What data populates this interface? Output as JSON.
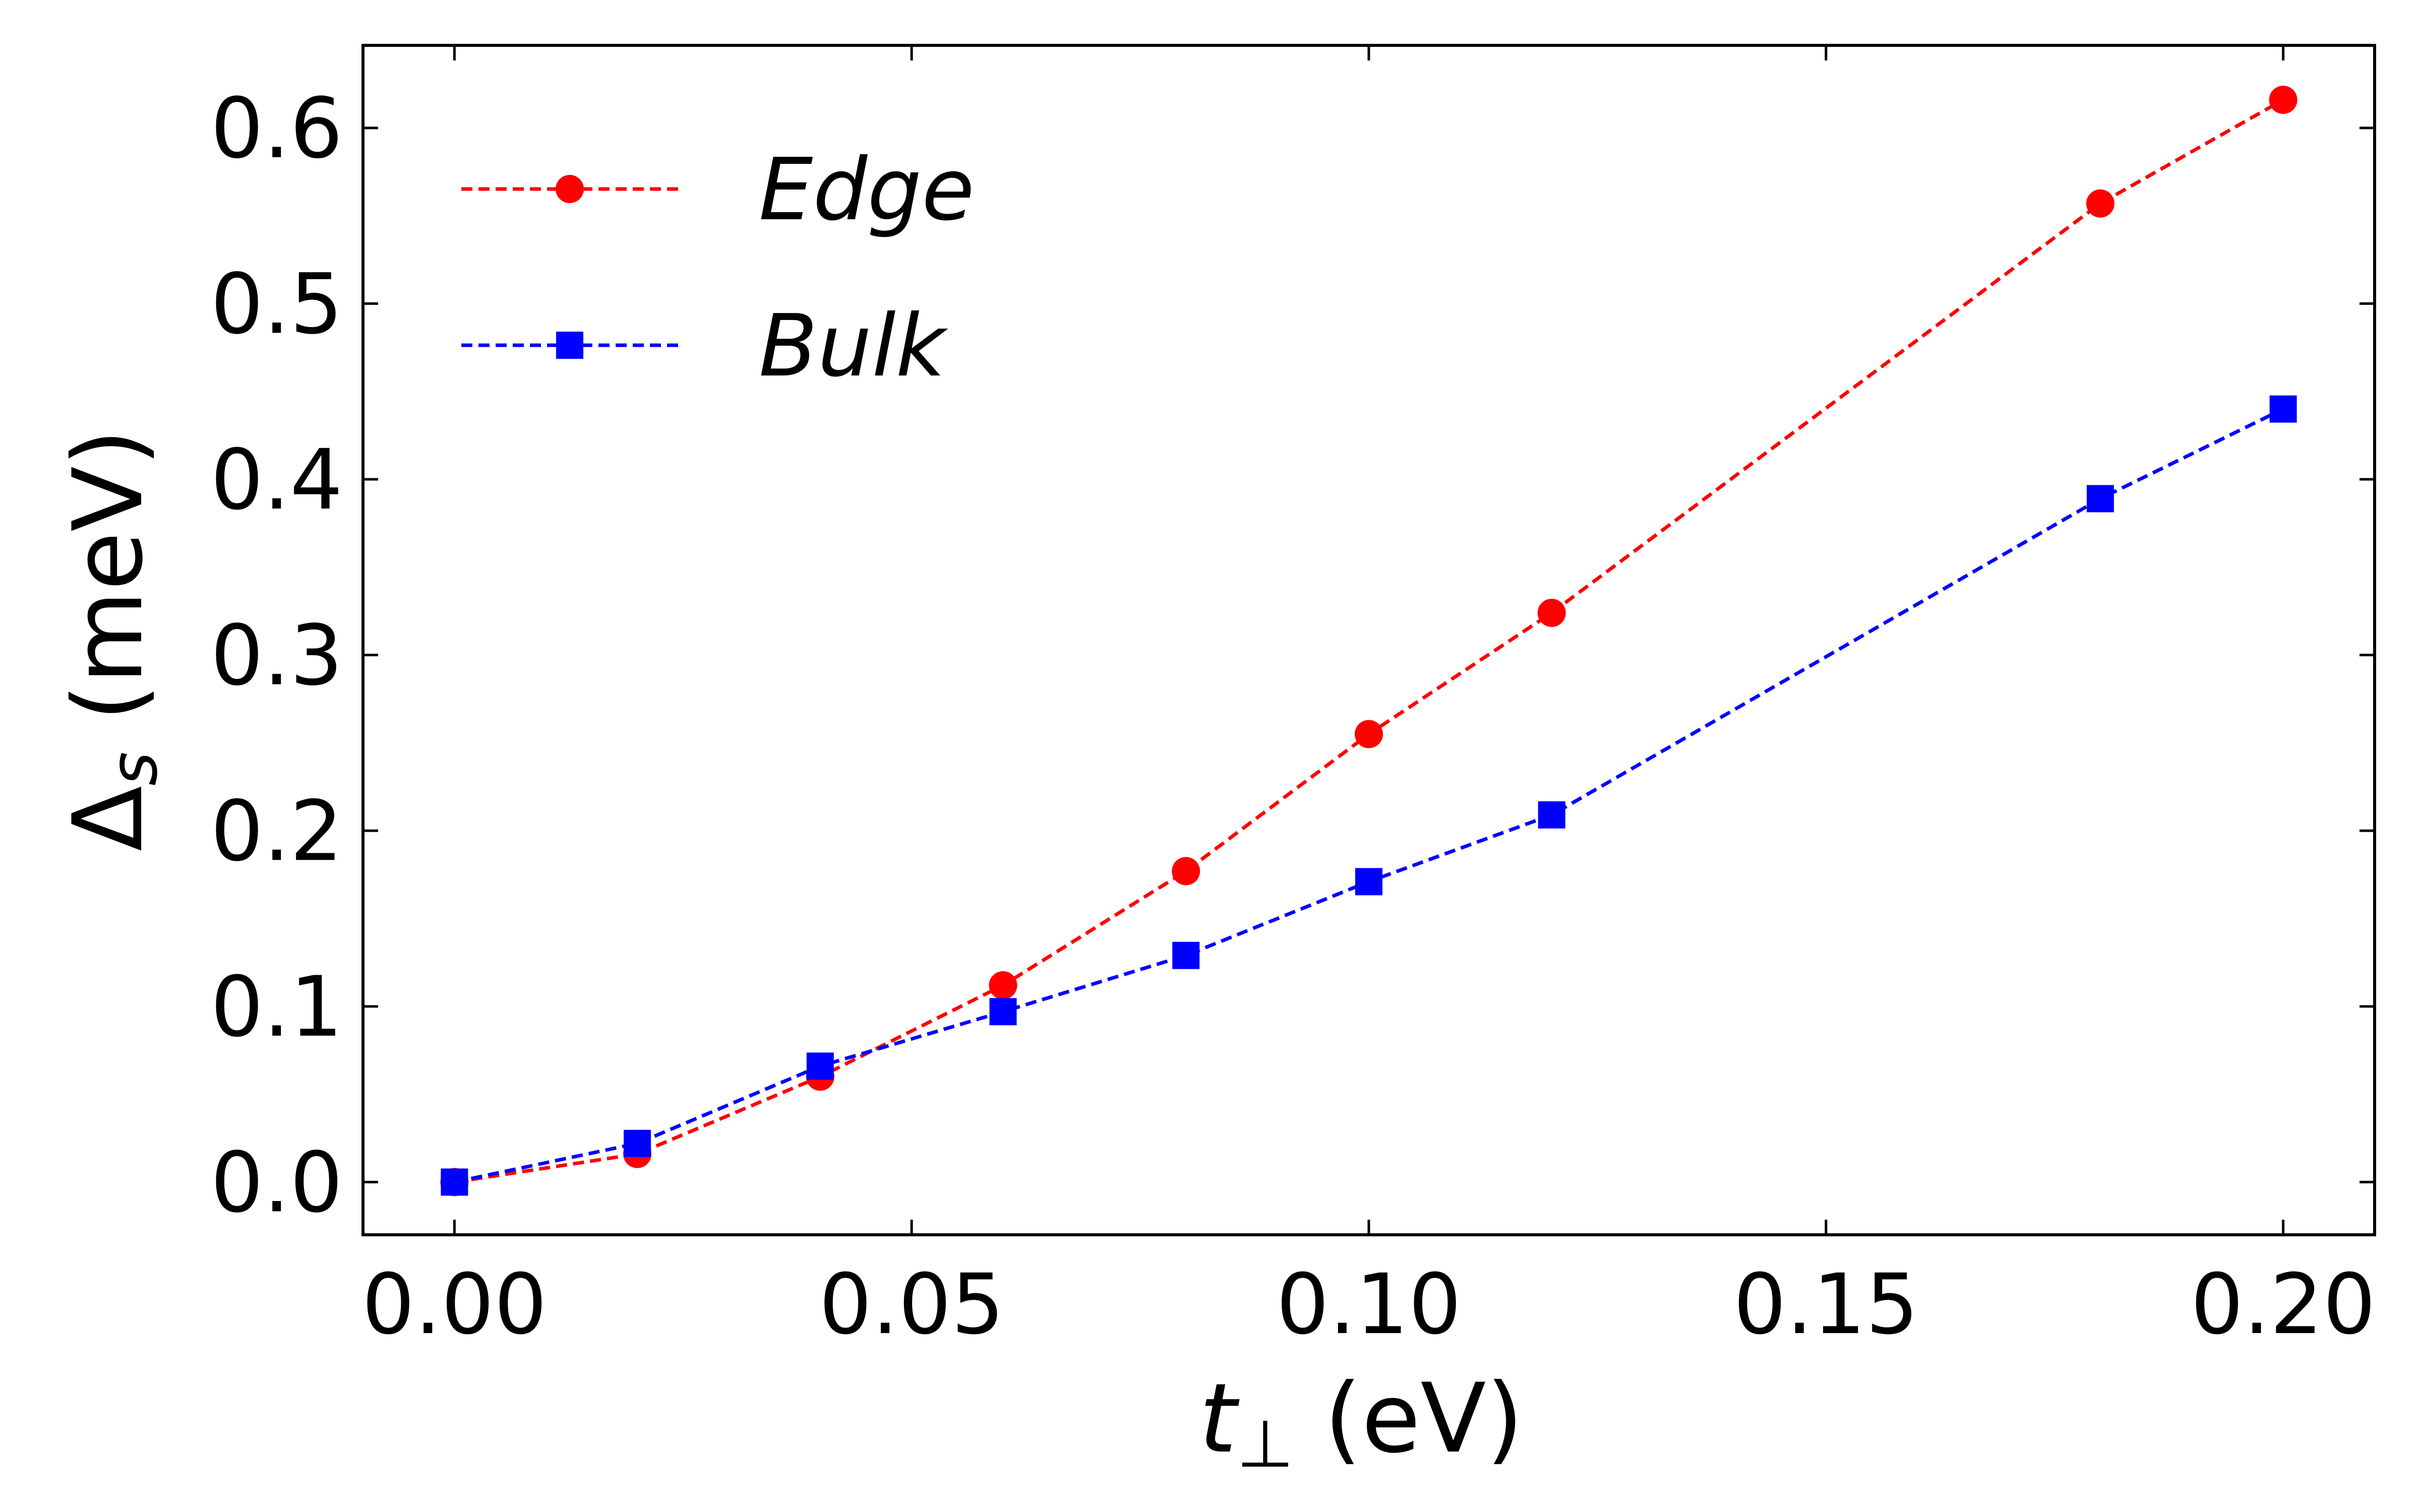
{
  "chart_data": {
    "type": "line",
    "title": "",
    "xlabel": {
      "main": "t",
      "sub": "⊥",
      "unit": " (eV)"
    },
    "ylabel": {
      "main": "Δ",
      "sub": "s",
      "unit": " (meV)"
    },
    "xlim": [
      -0.01,
      0.21
    ],
    "ylim": [
      -0.03,
      0.647
    ],
    "xticks": [
      0.0,
      0.05,
      0.1,
      0.15,
      0.2
    ],
    "xtick_labels": [
      "0.00",
      "0.05",
      "0.10",
      "0.15",
      "0.20"
    ],
    "yticks": [
      0.0,
      0.1,
      0.2,
      0.3,
      0.4,
      0.5,
      0.6
    ],
    "ytick_labels": [
      "0.0",
      "0.1",
      "0.2",
      "0.3",
      "0.4",
      "0.5",
      "0.6"
    ],
    "grid": false,
    "legend_position": "top-left",
    "x": [
      0.0,
      0.02,
      0.04,
      0.06,
      0.08,
      0.1,
      0.12,
      0.18,
      0.2
    ],
    "series": [
      {
        "name": "Edge",
        "color": "#ff0000",
        "marker": "circle",
        "linestyle": "dashed",
        "values": [
          0.0,
          0.016,
          0.06,
          0.112,
          0.177,
          0.255,
          0.324,
          0.557,
          0.616
        ]
      },
      {
        "name": "Bulk",
        "color": "#0000ff",
        "marker": "square",
        "linestyle": "dashed",
        "values": [
          0.0,
          0.022,
          0.066,
          0.097,
          0.129,
          0.171,
          0.209,
          0.389,
          0.44
        ]
      }
    ]
  }
}
